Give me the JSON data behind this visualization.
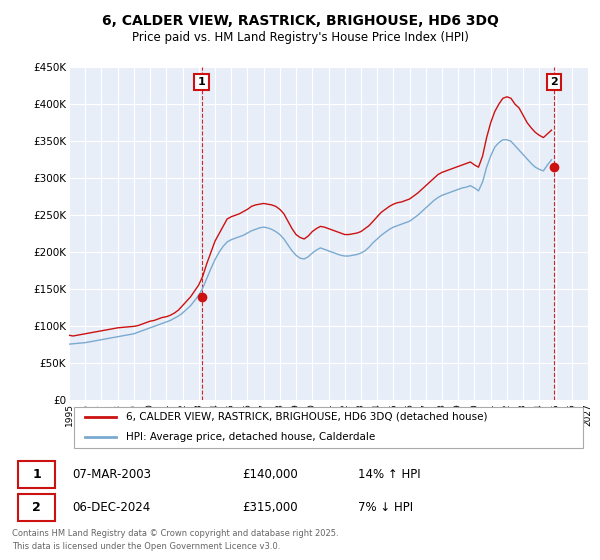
{
  "title": "6, CALDER VIEW, RASTRICK, BRIGHOUSE, HD6 3DQ",
  "subtitle": "Price paid vs. HM Land Registry's House Price Index (HPI)",
  "title_fontsize": 10,
  "subtitle_fontsize": 8.5,
  "bg_color": "#e8eef8",
  "red_color": "#cc1111",
  "blue_color": "#7aaad0",
  "grid_color": "#ffffff",
  "xlim_min": 1995,
  "xlim_max": 2027,
  "ylim_min": 0,
  "ylim_max": 450000,
  "yticks": [
    0,
    50000,
    100000,
    150000,
    200000,
    250000,
    300000,
    350000,
    400000,
    450000
  ],
  "ytick_labels": [
    "£0",
    "£50K",
    "£100K",
    "£150K",
    "£200K",
    "£250K",
    "£300K",
    "£350K",
    "£400K",
    "£450K"
  ],
  "sale1_x": 2003.18,
  "sale1_y": 140000,
  "sale1_label": "1",
  "sale2_x": 2024.92,
  "sale2_y": 315000,
  "sale2_label": "2",
  "legend_entries": [
    "6, CALDER VIEW, RASTRICK, BRIGHOUSE, HD6 3DQ (detached house)",
    "HPI: Average price, detached house, Calderdale"
  ],
  "annotation1_date": "07-MAR-2003",
  "annotation1_price": "£140,000",
  "annotation1_hpi": "14% ↑ HPI",
  "annotation2_date": "06-DEC-2024",
  "annotation2_price": "£315,000",
  "annotation2_hpi": "7% ↓ HPI",
  "footer": "Contains HM Land Registry data © Crown copyright and database right 2025.\nThis data is licensed under the Open Government Licence v3.0.",
  "red_hpi_series_x": [
    1995.0,
    1995.25,
    1995.5,
    1995.75,
    1996.0,
    1996.25,
    1996.5,
    1996.75,
    1997.0,
    1997.25,
    1997.5,
    1997.75,
    1998.0,
    1998.25,
    1998.5,
    1998.75,
    1999.0,
    1999.25,
    1999.5,
    1999.75,
    2000.0,
    2000.25,
    2000.5,
    2000.75,
    2001.0,
    2001.25,
    2001.5,
    2001.75,
    2002.0,
    2002.25,
    2002.5,
    2002.75,
    2003.0,
    2003.25,
    2003.5,
    2003.75,
    2004.0,
    2004.25,
    2004.5,
    2004.75,
    2005.0,
    2005.25,
    2005.5,
    2005.75,
    2006.0,
    2006.25,
    2006.5,
    2006.75,
    2007.0,
    2007.25,
    2007.5,
    2007.75,
    2008.0,
    2008.25,
    2008.5,
    2008.75,
    2009.0,
    2009.25,
    2009.5,
    2009.75,
    2010.0,
    2010.25,
    2010.5,
    2010.75,
    2011.0,
    2011.25,
    2011.5,
    2011.75,
    2012.0,
    2012.25,
    2012.5,
    2012.75,
    2013.0,
    2013.25,
    2013.5,
    2013.75,
    2014.0,
    2014.25,
    2014.5,
    2014.75,
    2015.0,
    2015.25,
    2015.5,
    2015.75,
    2016.0,
    2016.25,
    2016.5,
    2016.75,
    2017.0,
    2017.25,
    2017.5,
    2017.75,
    2018.0,
    2018.25,
    2018.5,
    2018.75,
    2019.0,
    2019.25,
    2019.5,
    2019.75,
    2020.0,
    2020.25,
    2020.5,
    2020.75,
    2021.0,
    2021.25,
    2021.5,
    2021.75,
    2022.0,
    2022.25,
    2022.5,
    2022.75,
    2023.0,
    2023.25,
    2023.5,
    2023.75,
    2024.0,
    2024.25,
    2024.5,
    2024.75
  ],
  "red_hpi_series_y": [
    88000,
    87000,
    88000,
    89000,
    90000,
    91000,
    92000,
    93000,
    94000,
    95000,
    96000,
    97000,
    98000,
    98500,
    99000,
    99500,
    100000,
    101000,
    103000,
    105000,
    107000,
    108000,
    110000,
    112000,
    113000,
    115000,
    118000,
    122000,
    128000,
    134000,
    140000,
    148000,
    156000,
    168000,
    185000,
    200000,
    215000,
    225000,
    235000,
    245000,
    248000,
    250000,
    252000,
    255000,
    258000,
    262000,
    264000,
    265000,
    266000,
    265000,
    264000,
    262000,
    258000,
    252000,
    242000,
    232000,
    224000,
    220000,
    218000,
    222000,
    228000,
    232000,
    235000,
    234000,
    232000,
    230000,
    228000,
    226000,
    224000,
    224000,
    225000,
    226000,
    228000,
    232000,
    236000,
    242000,
    248000,
    254000,
    258000,
    262000,
    265000,
    267000,
    268000,
    270000,
    272000,
    276000,
    280000,
    285000,
    290000,
    295000,
    300000,
    305000,
    308000,
    310000,
    312000,
    314000,
    316000,
    318000,
    320000,
    322000,
    318000,
    315000,
    330000,
    355000,
    375000,
    390000,
    400000,
    408000,
    410000,
    408000,
    400000,
    395000,
    385000,
    375000,
    368000,
    362000,
    358000,
    355000,
    360000,
    365000
  ],
  "blue_hpi_series_x": [
    1995.0,
    1995.25,
    1995.5,
    1995.75,
    1996.0,
    1996.25,
    1996.5,
    1996.75,
    1997.0,
    1997.25,
    1997.5,
    1997.75,
    1998.0,
    1998.25,
    1998.5,
    1998.75,
    1999.0,
    1999.25,
    1999.5,
    1999.75,
    2000.0,
    2000.25,
    2000.5,
    2000.75,
    2001.0,
    2001.25,
    2001.5,
    2001.75,
    2002.0,
    2002.25,
    2002.5,
    2002.75,
    2003.0,
    2003.25,
    2003.5,
    2003.75,
    2004.0,
    2004.25,
    2004.5,
    2004.75,
    2005.0,
    2005.25,
    2005.5,
    2005.75,
    2006.0,
    2006.25,
    2006.5,
    2006.75,
    2007.0,
    2007.25,
    2007.5,
    2007.75,
    2008.0,
    2008.25,
    2008.5,
    2008.75,
    2009.0,
    2009.25,
    2009.5,
    2009.75,
    2010.0,
    2010.25,
    2010.5,
    2010.75,
    2011.0,
    2011.25,
    2011.5,
    2011.75,
    2012.0,
    2012.25,
    2012.5,
    2012.75,
    2013.0,
    2013.25,
    2013.5,
    2013.75,
    2014.0,
    2014.25,
    2014.5,
    2014.75,
    2015.0,
    2015.25,
    2015.5,
    2015.75,
    2016.0,
    2016.25,
    2016.5,
    2016.75,
    2017.0,
    2017.25,
    2017.5,
    2017.75,
    2018.0,
    2018.25,
    2018.5,
    2018.75,
    2019.0,
    2019.25,
    2019.5,
    2019.75,
    2020.0,
    2020.25,
    2020.5,
    2020.75,
    2021.0,
    2021.25,
    2021.5,
    2021.75,
    2022.0,
    2022.25,
    2022.5,
    2022.75,
    2023.0,
    2023.25,
    2023.5,
    2023.75,
    2024.0,
    2024.25,
    2024.5,
    2024.75
  ],
  "blue_hpi_series_y": [
    76000,
    76500,
    77000,
    77500,
    78000,
    79000,
    80000,
    81000,
    82000,
    83000,
    84000,
    85000,
    86000,
    87000,
    88000,
    89000,
    90000,
    92000,
    94000,
    96000,
    98000,
    100000,
    102000,
    104000,
    106000,
    108000,
    111000,
    114000,
    118000,
    123000,
    128000,
    135000,
    142000,
    152000,
    165000,
    178000,
    190000,
    200000,
    208000,
    214000,
    217000,
    219000,
    221000,
    223000,
    226000,
    229000,
    231000,
    233000,
    234000,
    233000,
    231000,
    228000,
    224000,
    218000,
    210000,
    202000,
    196000,
    192000,
    191000,
    194000,
    199000,
    203000,
    206000,
    204000,
    202000,
    200000,
    198000,
    196000,
    195000,
    195000,
    196000,
    197000,
    199000,
    202000,
    207000,
    213000,
    218000,
    223000,
    227000,
    231000,
    234000,
    236000,
    238000,
    240000,
    242000,
    246000,
    250000,
    255000,
    260000,
    265000,
    270000,
    274000,
    277000,
    279000,
    281000,
    283000,
    285000,
    287000,
    288000,
    290000,
    287000,
    283000,
    295000,
    315000,
    330000,
    342000,
    348000,
    352000,
    352000,
    350000,
    344000,
    338000,
    332000,
    326000,
    320000,
    315000,
    312000,
    310000,
    318000,
    325000
  ]
}
